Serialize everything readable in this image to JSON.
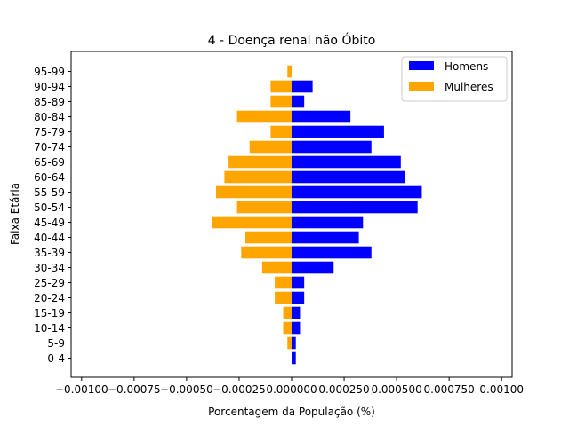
{
  "chart_data": {
    "type": "bar",
    "orientation": "horizontal",
    "title": "4 - Doença renal não Óbito",
    "xlabel": "Porcentagem da População (%)",
    "ylabel": "Faixa Etária",
    "xlim": [
      -0.00105,
      0.00105
    ],
    "x_ticks": [
      -0.001,
      -0.00075,
      -0.0005,
      -0.00025,
      0.0,
      0.00025,
      0.0005,
      0.00075,
      0.001
    ],
    "x_tick_labels": [
      "−0.00100",
      "−0.00075",
      "−0.00050",
      "−0.00025",
      "0.000000",
      "0.000250",
      "0.000500",
      "0.000750",
      "0.00100"
    ],
    "categories": [
      "0-4",
      "5-9",
      "10-14",
      "15-19",
      "20-24",
      "25-29",
      "30-34",
      "35-39",
      "40-44",
      "45-49",
      "50-54",
      "55-59",
      "60-64",
      "65-69",
      "70-74",
      "75-79",
      "80-84",
      "85-89",
      "90-94",
      "95-99"
    ],
    "series": [
      {
        "name": "Homens",
        "color": "#0000ff",
        "values": [
          2e-05,
          2e-05,
          4e-05,
          4e-05,
          6e-05,
          6e-05,
          0.0002,
          0.00038,
          0.00032,
          0.00034,
          0.0006,
          0.00062,
          0.00054,
          0.00052,
          0.00038,
          0.00044,
          0.00028,
          6e-05,
          0.0001,
          null
        ]
      },
      {
        "name": "Mulheres",
        "color": "#ffa500",
        "values": [
          null,
          -2e-05,
          -4e-05,
          -4e-05,
          -8e-05,
          -8e-05,
          -0.00014,
          -0.00024,
          -0.00022,
          -0.00038,
          -0.00026,
          -0.00036,
          -0.00032,
          -0.0003,
          -0.0002,
          -0.0001,
          -0.00026,
          -0.0001,
          -0.0001,
          -2e-05
        ]
      }
    ],
    "grid": false,
    "legend": "top-right"
  }
}
